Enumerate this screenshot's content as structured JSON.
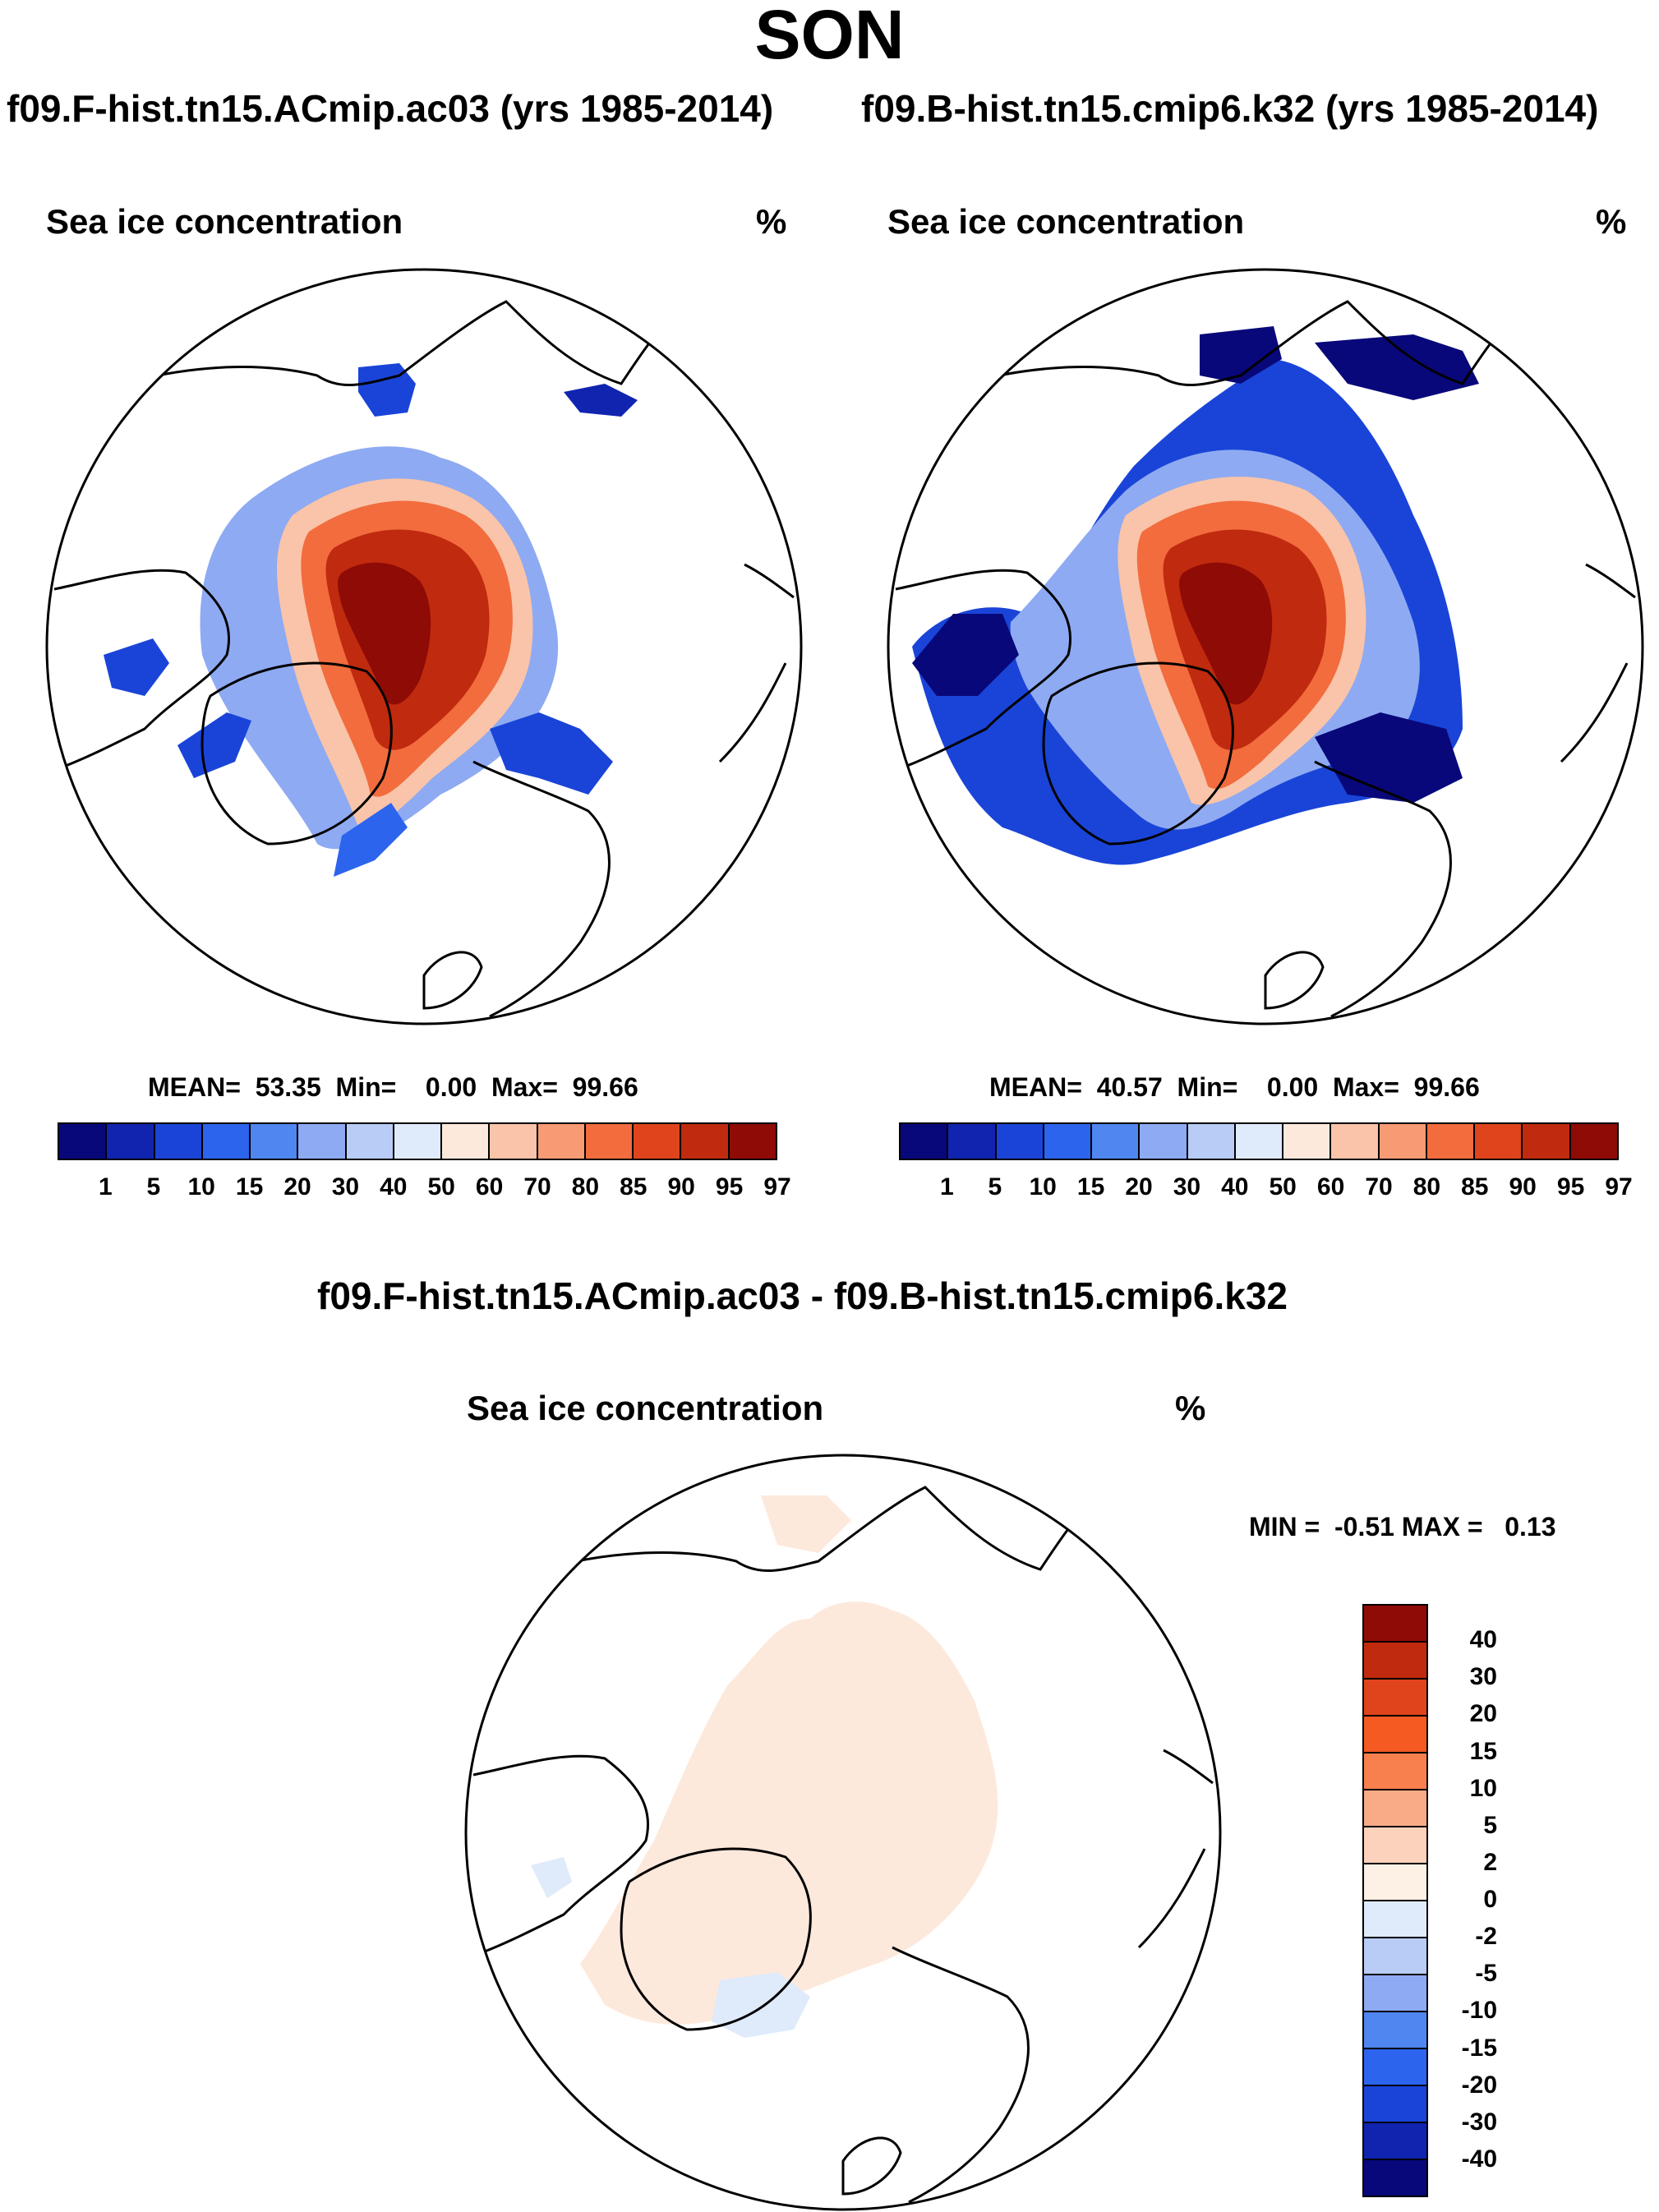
{
  "main_title": "SON",
  "left_panel": {
    "case": "f09.F-hist.tn15.ACmip.ac03 (yrs 1985-2014)",
    "title": "Sea ice concentration",
    "units": "%",
    "stats": "MEAN=  53.35  Min=    0.00  Max=  99.66"
  },
  "right_panel": {
    "case": "f09.B-hist.tn15.cmip6.k32 (yrs 1985-2014)",
    "title": "Sea ice concentration",
    "units": "%",
    "stats": "MEAN=  40.57  Min=    0.00  Max=  99.66"
  },
  "diff_panel": {
    "case": "f09.F-hist.tn15.ACmip.ac03 - f09.B-hist.tn15.cmip6.k32",
    "title": "Sea ice concentration",
    "units": "%",
    "stats": "MIN =  -0.51 MAX =   0.13"
  },
  "colorbar_levels": [
    "1",
    "5",
    "10",
    "15",
    "20",
    "30",
    "40",
    "50",
    "60",
    "70",
    "80",
    "85",
    "90",
    "95",
    "97"
  ],
  "colorbar_colors": [
    "#08087a",
    "#1024b0",
    "#1a44d8",
    "#2c64ee",
    "#5086f0",
    "#8eaaf2",
    "#b8ccf5",
    "#dfeafa",
    "#fde9dc",
    "#f9c4a9",
    "#f79b74",
    "#f26c3e",
    "#e0441c",
    "#c02a0e",
    "#8e0b06"
  ],
  "diff_levels": [
    "40",
    "30",
    "20",
    "15",
    "10",
    "5",
    "2",
    "0",
    "-2",
    "-5",
    "-10",
    "-15",
    "-20",
    "-30",
    "-40"
  ],
  "diff_colors": [
    "#8e0b06",
    "#c02a0e",
    "#e0441c",
    "#f55a22",
    "#f7804e",
    "#f9ab86",
    "#fcd2bc",
    "#fdf0e4",
    "#dfeafa",
    "#b8ccf5",
    "#8eaaf2",
    "#5086f0",
    "#2c64ee",
    "#1a44d8",
    "#1024b0",
    "#08087a"
  ],
  "chart_data": [
    {
      "type": "heatmap",
      "title": "Sea ice concentration",
      "case": "f09.F-hist.tn15.ACmip.ac03 (yrs 1985-2014)",
      "units": "%",
      "mean": 53.35,
      "min": 0.0,
      "max": 99.66,
      "levels": [
        1,
        5,
        10,
        15,
        20,
        30,
        40,
        50,
        60,
        70,
        80,
        85,
        90,
        95,
        97
      ]
    },
    {
      "type": "heatmap",
      "title": "Sea ice concentration",
      "case": "f09.B-hist.tn15.cmip6.k32 (yrs 1985-2014)",
      "units": "%",
      "mean": 40.57,
      "min": 0.0,
      "max": 99.66,
      "levels": [
        1,
        5,
        10,
        15,
        20,
        30,
        40,
        50,
        60,
        70,
        80,
        85,
        90,
        95,
        97
      ]
    },
    {
      "type": "heatmap",
      "title": "Sea ice concentration",
      "case": "f09.F-hist.tn15.ACmip.ac03 - f09.B-hist.tn15.cmip6.k32",
      "units": "%",
      "min": -0.51,
      "max": 0.13,
      "levels": [
        -40,
        -30,
        -20,
        -15,
        -10,
        -5,
        -2,
        0,
        2,
        5,
        10,
        15,
        20,
        30,
        40
      ]
    }
  ]
}
